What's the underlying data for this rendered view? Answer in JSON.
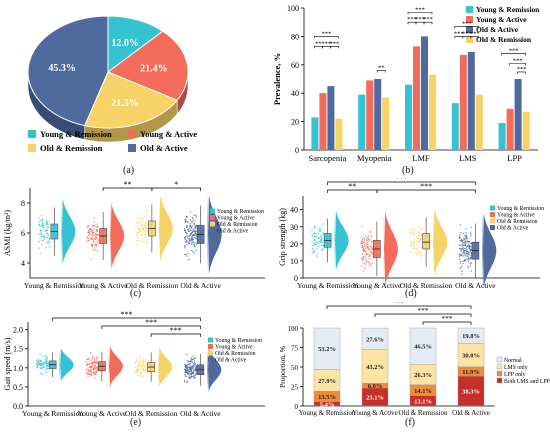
{
  "colors": {
    "young_remission": "#35C3D3",
    "young_active": "#F26B5B",
    "old_remission": "#F7D266",
    "old_active": "#4F6B9E",
    "dark_red": "#C7302A",
    "orange": "#F08A3C",
    "light_yellow": "#FBE4A4",
    "light_blue": "#E6ECF6"
  },
  "panels": {
    "a": "(a)",
    "b": "(b)",
    "c": "(c)",
    "d": "(d)",
    "e": "(e)",
    "f": "(f)"
  },
  "legend_groups": [
    "Young & Remission",
    "Young & Active",
    "Old & Remission",
    "Old & Active"
  ],
  "group_ticks": [
    "Young & Remission",
    "Young & Active",
    "Old & Remission",
    "Old & Active"
  ],
  "chart_data": [
    {
      "id": "a",
      "type": "pie",
      "labels": [
        "Young & Remission",
        "Young & Active",
        "Old & Remission",
        "Old & Active"
      ],
      "values": [
        12.0,
        21.4,
        21.3,
        45.3
      ],
      "value_labels": [
        "12.0%",
        "21.4%",
        "21.3%",
        "45.3%"
      ]
    },
    {
      "id": "b",
      "type": "bar",
      "categories": [
        "Sarcopenia",
        "Myopenia",
        "LMF",
        "LMS",
        "LPP"
      ],
      "ylabel": "Prevalence, %",
      "ylim": [
        0,
        100
      ],
      "yticks": [
        0,
        20,
        40,
        60,
        80,
        100
      ],
      "legend": "top-right",
      "series": [
        {
          "name": "Young & Remission",
          "values": [
            23,
            39,
            46,
            33,
            19
          ]
        },
        {
          "name": "Young & Active",
          "values": [
            40,
            49,
            73,
            67,
            29
          ]
        },
        {
          "name": "Old & Active",
          "values": [
            45,
            50,
            80,
            69,
            50
          ]
        },
        {
          "name": "Old & Remission",
          "values": [
            22,
            37,
            53,
            39,
            27
          ]
        }
      ],
      "significance": [
        "***",
        "**",
        "***",
        "***",
        "**",
        "***",
        "***",
        "***",
        "***",
        "***",
        "***",
        "***",
        "***",
        "***",
        "***",
        "***",
        "***",
        "***"
      ]
    },
    {
      "id": "c",
      "type": "scatter",
      "ylabel": "ASMI (kg/m²)",
      "ylim": [
        3,
        9
      ],
      "yticks": [
        4,
        6,
        8
      ],
      "medians": [
        6.1,
        5.8,
        6.3,
        5.9
      ],
      "q1": [
        5.6,
        5.3,
        5.8,
        5.3
      ],
      "q3": [
        6.6,
        6.3,
        6.8,
        6.5
      ],
      "significance": [
        "**",
        "*"
      ],
      "legend": "right"
    },
    {
      "id": "d",
      "type": "scatter",
      "ylabel": "Grip strength (kg)",
      "ylim": [
        0,
        48
      ],
      "yticks": [
        0,
        10,
        20,
        30,
        40
      ],
      "medians": [
        22,
        17,
        21,
        16
      ],
      "q1": [
        18,
        12,
        17,
        11
      ],
      "q3": [
        26,
        22,
        26,
        21
      ],
      "significance": [
        "***",
        "**",
        "***",
        "***"
      ],
      "legend": "right"
    },
    {
      "id": "e",
      "type": "scatter",
      "ylabel": "Gait speed (m/s)",
      "ylim": [
        0,
        2.2
      ],
      "yticks": [
        0.0,
        0.5,
        1.0,
        1.5,
        2.0
      ],
      "medians": [
        1.08,
        1.04,
        1.02,
        0.95
      ],
      "q1": [
        0.98,
        0.92,
        0.9,
        0.82
      ],
      "q3": [
        1.18,
        1.16,
        1.14,
        1.08
      ],
      "significance": [
        "***",
        "***",
        "***"
      ],
      "legend": "right"
    },
    {
      "id": "f",
      "type": "bar",
      "stacked": true,
      "ylabel": "Proportion, %",
      "ylim": [
        0,
        100
      ],
      "yticks": [
        0,
        25,
        50,
        75,
        100
      ],
      "legend": "right",
      "series": [
        {
          "name": "Both LMS and LPP",
          "values": [
            5.4,
            23.1,
            13.1,
            38.3
          ],
          "labels": [
            "5.4%",
            "23.1%",
            "13.1%",
            "38.3%"
          ]
        },
        {
          "name": "LPP only",
          "values": [
            13.5,
            6.0,
            14.1,
            11.9
          ],
          "labels": [
            "13.5%",
            "6.0%",
            "14.1%",
            "11.9%"
          ]
        },
        {
          "name": "LMS only",
          "values": [
            27.9,
            43.2,
            26.3,
            30.0
          ],
          "labels": [
            "27.9%",
            "43.2%",
            "26.3%",
            "30.0%"
          ]
        },
        {
          "name": "Normal",
          "values": [
            53.2,
            27.6,
            46.5,
            19.8
          ],
          "labels": [
            "53.2%",
            "27.6%",
            "46.5%",
            "19.8%"
          ]
        }
      ],
      "significance": [
        "***",
        "***",
        "***"
      ]
    }
  ]
}
